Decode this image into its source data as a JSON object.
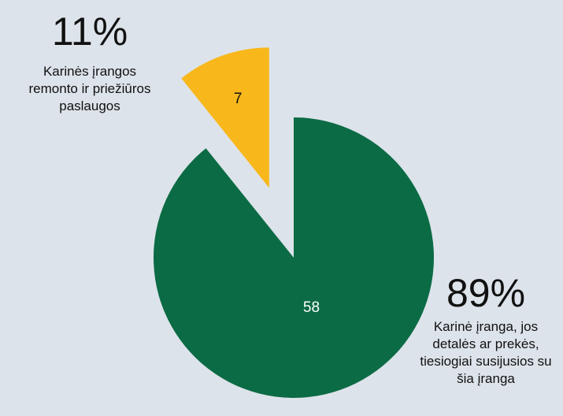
{
  "chart_data": {
    "type": "pie",
    "categories": [
      "Karinė įranga, jos detalės ar prekės, tiesiogiai susijusios su šia įranga",
      "Karinės įrangos remonto ir priežiūros paslaugos"
    ],
    "values": [
      58,
      7
    ],
    "percent_labels": [
      "89%",
      "11%"
    ],
    "colors": [
      "#0b6b45",
      "#f8b81c"
    ],
    "exploded": [
      false,
      true
    ]
  }
}
